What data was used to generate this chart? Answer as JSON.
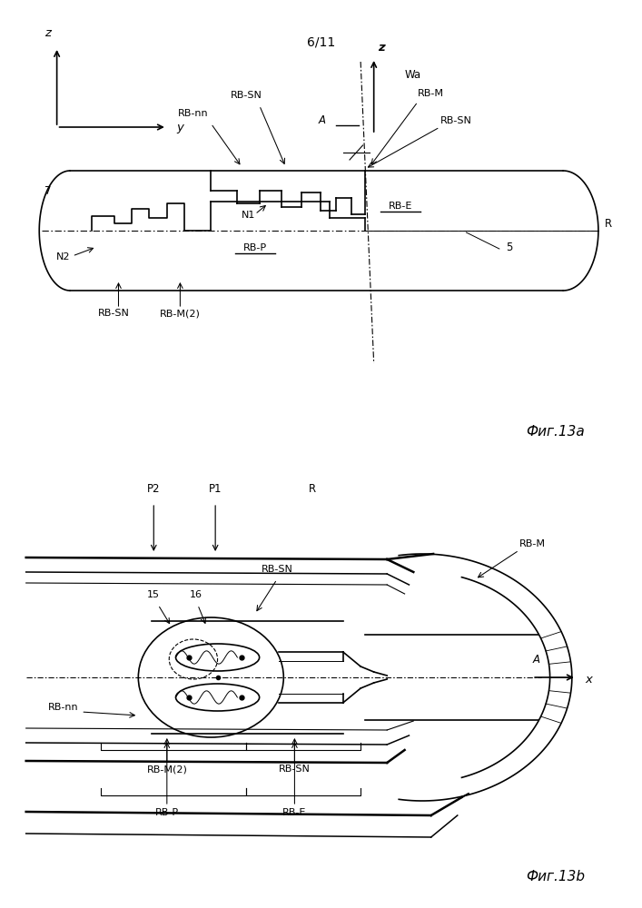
{
  "title": "6/11",
  "fig_a_label": "Фиг.13a",
  "fig_b_label": "Фиг.13b",
  "bg_color": "#ffffff",
  "lc": "#000000",
  "fs": 8.5,
  "fs_title": 10,
  "lw": 1.2,
  "lwt": 0.7
}
